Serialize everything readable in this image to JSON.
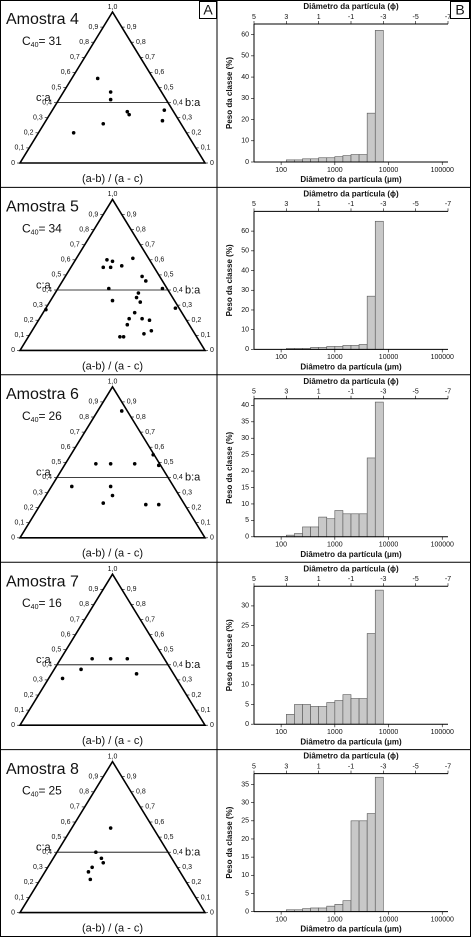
{
  "panel_labels": [
    "A",
    "B"
  ],
  "chart_data": [
    {
      "type": "ternary",
      "title": "Amostra 4",
      "c40": {
        "symbol": "C",
        "subscript": "40",
        "sign": "=",
        "value": 31
      },
      "left_label": "c:a",
      "right_label": "b:a",
      "xlabel": "(a-b) / (a - c)",
      "xlim": [
        0,
        1
      ],
      "ylim": [
        0,
        1
      ],
      "threshold": 0.4,
      "yticks": [
        0,
        {
          "value": 0.1,
          "label": "0,1"
        },
        {
          "value": 0.2,
          "label": "0,2"
        },
        {
          "value": 0.3,
          "label": "0,3"
        },
        {
          "value": 0.4,
          "label": "0,4"
        },
        {
          "value": 0.5,
          "label": "0,5"
        },
        {
          "value": 0.6,
          "label": "0,6"
        },
        {
          "value": 0.7,
          "label": "0,7"
        },
        {
          "value": 0.8,
          "label": "0,8"
        },
        {
          "value": 0.9,
          "label": "0,9"
        },
        {
          "value": 1,
          "label": "1,0"
        }
      ],
      "x": [
        0.42,
        0.49,
        0.49,
        0.58,
        0.59,
        0.45,
        0.77,
        0.78,
        0.29
      ],
      "y": [
        0.56,
        0.47,
        0.42,
        0.34,
        0.32,
        0.26,
        0.28,
        0.35,
        0.2
      ]
    },
    {
      "type": "histogram",
      "x2label": "Diâmetro da partícula (ϕ)",
      "ylabel": "Peso da classe (%)",
      "xlabel": "Diâmetro da partícula (μm)",
      "xscale": "log",
      "xlim": [
        31.25,
        128000
      ],
      "xticks": [
        100,
        1000,
        10000,
        100000
      ],
      "x2lim": [
        5,
        -7
      ],
      "x2ticks": [
        5,
        3,
        1,
        -1,
        -3,
        -5,
        -7
      ],
      "ylim": [
        0,
        65
      ],
      "yticks": [
        0,
        10,
        20,
        30,
        40,
        50,
        60
      ],
      "color": "#c8c8c8",
      "bins": [
        3,
        2.5,
        2,
        1.5,
        1,
        0.5,
        0,
        -0.5,
        -1,
        -1.5,
        -2,
        -2.5,
        -3
      ],
      "values": [
        1,
        1,
        1.5,
        1.5,
        2,
        2,
        2.5,
        3,
        3.5,
        3.5,
        23,
        62
      ]
    },
    {
      "type": "ternary",
      "title": "Amostra 5",
      "c40": {
        "symbol": "C",
        "subscript": "40",
        "sign": "=",
        "value": 34
      },
      "left_label": "c:a",
      "right_label": "b:a",
      "xlabel": "(a-b) / (a - c)",
      "xlim": [
        0,
        1
      ],
      "ylim": [
        0,
        1
      ],
      "threshold": 0.4,
      "yticks": [
        0,
        {
          "value": 0.1,
          "label": "0,1"
        },
        {
          "value": 0.2,
          "label": "0,2"
        },
        {
          "value": 0.3,
          "label": "0,3"
        },
        {
          "value": 0.4,
          "label": "0,4"
        },
        {
          "value": 0.5,
          "label": "0,5"
        },
        {
          "value": 0.6,
          "label": "0,6"
        },
        {
          "value": 0.7,
          "label": "0,7"
        },
        {
          "value": 0.8,
          "label": "0,8"
        },
        {
          "value": 0.9,
          "label": "0,9"
        },
        {
          "value": 1,
          "label": "1,0"
        }
      ],
      "x": [
        0.47,
        0.5,
        0.55,
        0.45,
        0.49,
        0.61,
        0.66,
        0.68,
        0.48,
        0.64,
        0.77,
        0.63,
        0.65,
        0.5,
        0.62,
        0.59,
        0.58,
        0.56,
        0.54,
        0.66,
        0.7,
        0.71,
        0.67,
        0.14,
        0.84
      ],
      "y": [
        0.6,
        0.59,
        0.56,
        0.55,
        0.55,
        0.61,
        0.49,
        0.46,
        0.41,
        0.38,
        0.41,
        0.35,
        0.32,
        0.33,
        0.25,
        0.21,
        0.17,
        0.09,
        0.09,
        0.21,
        0.2,
        0.13,
        0.11,
        0.27,
        0.28
      ]
    },
    {
      "type": "histogram",
      "x2label": "Diâmetro da partícula (ϕ)",
      "ylabel": "Peso da classe (%)",
      "xlabel": "Diâmetro da partícula (μm)",
      "xscale": "log",
      "xlim": [
        31.25,
        128000
      ],
      "xticks": [
        100,
        1000,
        10000,
        100000
      ],
      "x2lim": [
        5,
        -7
      ],
      "x2ticks": [
        5,
        3,
        1,
        -1,
        -3,
        -5,
        -7
      ],
      "ylim": [
        0,
        70
      ],
      "yticks": [
        0,
        10,
        20,
        30,
        40,
        50,
        60
      ],
      "color": "#c8c8c8",
      "bins": [
        3,
        2.5,
        2,
        1.5,
        1,
        0.5,
        0,
        -0.5,
        -1,
        -1.5,
        -2,
        -2.5,
        -3
      ],
      "values": [
        0.5,
        0.5,
        0.5,
        1,
        1,
        1.5,
        1.5,
        2,
        2,
        2.5,
        27,
        65
      ]
    },
    {
      "type": "ternary",
      "title": "Amostra 6",
      "c40": {
        "symbol": "C",
        "subscript": "40",
        "sign": "=",
        "value": 26
      },
      "left_label": "c:a",
      "right_label": "b:a",
      "xlabel": "(a-b) / (a - c)",
      "xlim": [
        0,
        1
      ],
      "ylim": [
        0,
        1
      ],
      "threshold": 0.4,
      "yticks": [
        0,
        {
          "value": 0.1,
          "label": "0,1"
        },
        {
          "value": 0.2,
          "label": "0,2"
        },
        {
          "value": 0.3,
          "label": "0,3"
        },
        {
          "value": 0.4,
          "label": "0,4"
        },
        {
          "value": 0.5,
          "label": "0,5"
        },
        {
          "value": 0.6,
          "label": "0,6"
        },
        {
          "value": 0.7,
          "label": "0,7"
        },
        {
          "value": 0.8,
          "label": "0,8"
        },
        {
          "value": 0.9,
          "label": "0,9"
        },
        {
          "value": 1,
          "label": "1,0"
        }
      ],
      "x": [
        0.55,
        0.41,
        0.49,
        0.62,
        0.72,
        0.75,
        0.28,
        0.49,
        0.5,
        0.45,
        0.68,
        0.75
      ],
      "y": [
        0.84,
        0.49,
        0.49,
        0.49,
        0.55,
        0.48,
        0.34,
        0.34,
        0.28,
        0.23,
        0.22,
        0.22
      ]
    },
    {
      "type": "histogram",
      "x2label": "Diâmetro da partícula (ϕ)",
      "ylabel": "Peso da classe (%)",
      "xlabel": "Diâmetro da partícula (μm)",
      "xscale": "log",
      "xlim": [
        31.25,
        128000
      ],
      "xticks": [
        100,
        1000,
        10000,
        100000
      ],
      "x2lim": [
        5,
        -7
      ],
      "x2ticks": [
        5,
        3,
        1,
        -1,
        -3,
        -5,
        -7
      ],
      "ylim": [
        0,
        42
      ],
      "yticks": [
        0,
        5,
        10,
        15,
        20,
        25,
        30,
        35,
        40
      ],
      "color": "#c8c8c8",
      "bins": [
        3,
        2.5,
        2,
        1.5,
        1,
        0.5,
        0,
        -0.5,
        -1,
        -1.5,
        -2,
        -2.5,
        -3
      ],
      "values": [
        0.5,
        1,
        3,
        3,
        6,
        5.5,
        8,
        7,
        7,
        7,
        24,
        41
      ]
    },
    {
      "type": "ternary",
      "title": "Amostra 7",
      "c40": {
        "symbol": "C",
        "subscript": "40",
        "sign": "=",
        "value": 16
      },
      "left_label": "c:a",
      "right_label": "b:a",
      "xlabel": "(a-b) / (a - c)",
      "xlim": [
        0,
        1
      ],
      "ylim": [
        0,
        1
      ],
      "threshold": 0.4,
      "yticks": [
        0,
        {
          "value": 0.1,
          "label": "0,1"
        },
        {
          "value": 0.2,
          "label": "0,2"
        },
        {
          "value": 0.3,
          "label": "0,3"
        },
        {
          "value": 0.4,
          "label": "0,4"
        },
        {
          "value": 0.5,
          "label": "0,5"
        },
        {
          "value": 0.6,
          "label": "0,6"
        },
        {
          "value": 0.7,
          "label": "0,7"
        },
        {
          "value": 0.8,
          "label": "0,8"
        },
        {
          "value": 0.9,
          "label": "0,9"
        },
        {
          "value": 1,
          "label": "1,0"
        }
      ],
      "x": [
        0.33,
        0.39,
        0.49,
        0.58,
        0.63,
        0.23
      ],
      "y": [
        0.37,
        0.44,
        0.44,
        0.44,
        0.34,
        0.31
      ]
    },
    {
      "type": "histogram",
      "x2label": "Diâmetro da partícula (ϕ)",
      "ylabel": "Peso da classe (%)",
      "xlabel": "Diâmetro da partícula (μm)",
      "xscale": "log",
      "xlim": [
        31.25,
        128000
      ],
      "xticks": [
        100,
        1000,
        10000,
        100000
      ],
      "x2lim": [
        5,
        -7
      ],
      "x2ticks": [
        5,
        3,
        1,
        -1,
        -3,
        -5,
        -7
      ],
      "ylim": [
        0,
        35
      ],
      "yticks": [
        0,
        5,
        10,
        15,
        20,
        25,
        30
      ],
      "color": "#c8c8c8",
      "bins": [
        3,
        2.5,
        2,
        1.5,
        1,
        0.5,
        0,
        -0.5,
        -1,
        -1.5,
        -2,
        -2.5,
        -3
      ],
      "values": [
        2.5,
        5,
        5,
        4.5,
        4.5,
        5.5,
        6,
        7.5,
        6.5,
        6.5,
        23,
        34
      ]
    },
    {
      "type": "ternary",
      "title": "Amostra 8",
      "c40": {
        "symbol": "C",
        "subscript": "40",
        "sign": "=",
        "value": 25
      },
      "left_label": "c:a",
      "right_label": "b:a",
      "xlabel": "(a-b) / (a - c)",
      "xlim": [
        0,
        1
      ],
      "ylim": [
        0,
        1
      ],
      "threshold": 0.4,
      "yticks": [
        0,
        {
          "value": 0.1,
          "label": "0,1"
        },
        {
          "value": 0.2,
          "label": "0,2"
        },
        {
          "value": 0.3,
          "label": "0,3"
        },
        {
          "value": 0.4,
          "label": "0,4"
        },
        {
          "value": 0.5,
          "label": "0,5"
        },
        {
          "value": 0.6,
          "label": "0,6"
        },
        {
          "value": 0.7,
          "label": "0,7"
        },
        {
          "value": 0.8,
          "label": "0,8"
        },
        {
          "value": 0.9,
          "label": "0,9"
        },
        {
          "value": 1,
          "label": "1,0"
        }
      ],
      "x": [
        0.49,
        0.41,
        0.44,
        0.45,
        0.39,
        0.37,
        0.38
      ],
      "y": [
        0.56,
        0.4,
        0.36,
        0.33,
        0.3,
        0.27,
        0.22
      ]
    },
    {
      "type": "histogram",
      "x2label": "Diâmetro da partícula (ϕ)",
      "ylabel": "Peso da classe (%)",
      "xlabel": "Diâmetro da partícula (μm)",
      "xscale": "log",
      "xlim": [
        31.25,
        128000
      ],
      "xticks": [
        100,
        1000,
        10000,
        100000
      ],
      "x2lim": [
        5,
        -7
      ],
      "x2ticks": [
        5,
        3,
        1,
        -1,
        -3,
        -5,
        -7
      ],
      "ylim": [
        0,
        38
      ],
      "yticks": [
        0,
        5,
        10,
        15,
        20,
        25,
        30,
        35
      ],
      "color": "#c8c8c8",
      "bins": [
        3,
        2.5,
        2,
        1.5,
        1,
        0.5,
        0,
        -0.5,
        -1,
        -1.5,
        -2,
        -2.5,
        -3
      ],
      "values": [
        0.5,
        0.5,
        0.8,
        1,
        1,
        1.5,
        2,
        3,
        25,
        25,
        27,
        37
      ]
    }
  ]
}
